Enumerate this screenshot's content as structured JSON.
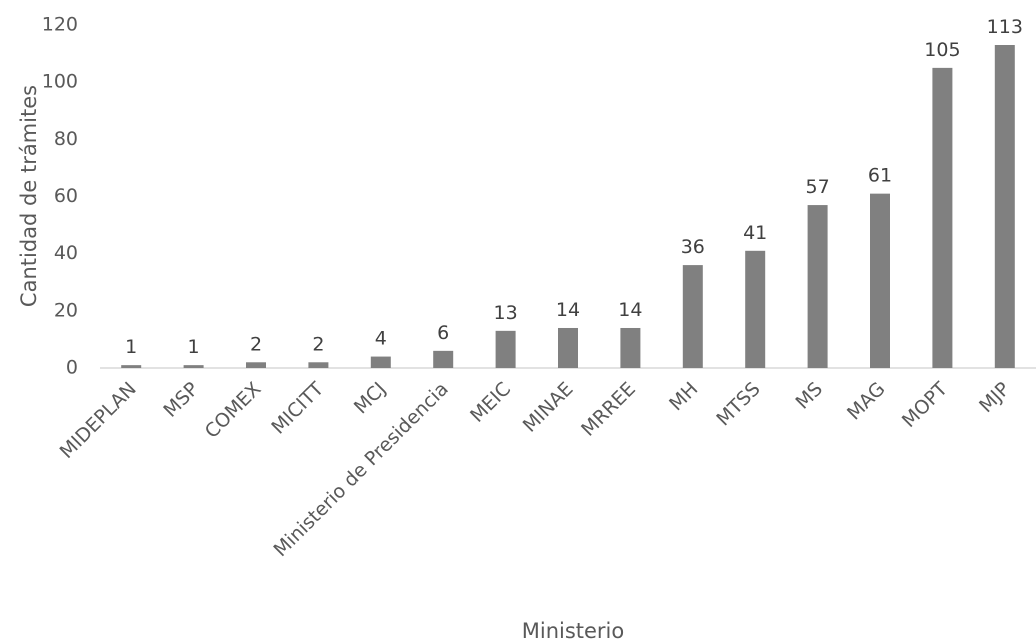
{
  "chart_data": {
    "type": "bar",
    "categories": [
      "MIDEPLAN",
      "MSP",
      "COMEX",
      "MICITT",
      "MCJ",
      "Ministerio de Presidencia",
      "MEIC",
      "MINAE",
      "MRREE",
      "MH",
      "MTSS",
      "MS",
      "MAG",
      "MOPT",
      "MJP"
    ],
    "values": [
      1,
      1,
      2,
      2,
      4,
      6,
      13,
      14,
      14,
      36,
      41,
      57,
      61,
      105,
      113
    ],
    "xlabel": "Ministerio",
    "ylabel": "Cantidad de trámites",
    "ylim": [
      0,
      120
    ],
    "yticks": [
      0,
      20,
      40,
      60,
      80,
      100,
      120
    ],
    "grid": false,
    "data_labels": true,
    "bar_color": "#808080"
  }
}
